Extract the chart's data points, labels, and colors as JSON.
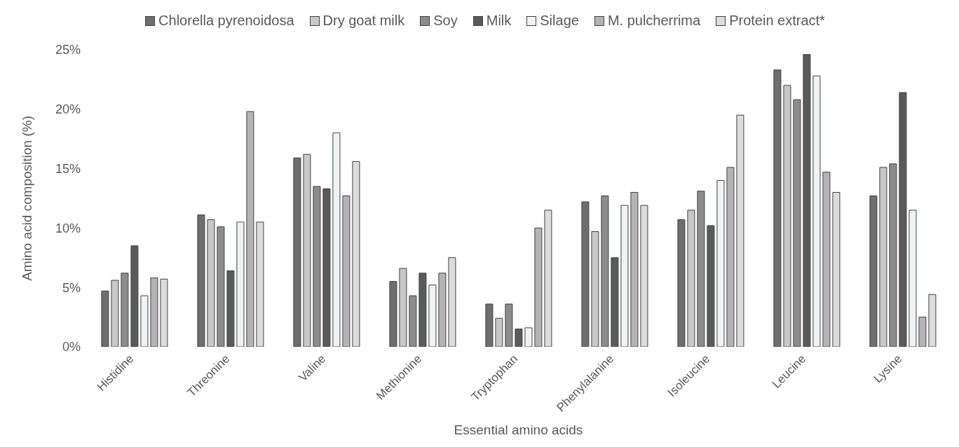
{
  "chart_data": {
    "type": "bar",
    "xlabel": "Essential amino acids",
    "ylabel": "Amino acid composition (%)",
    "categories": [
      "Histidine",
      "Threonine",
      "Valine",
      "Methionine",
      "Tryptophan",
      "Phenylalanine",
      "Isoleucine",
      "Leucine",
      "Lysine"
    ],
    "series": [
      {
        "name": "Chlorella pyrenoidosa",
        "color": "#6e6e6e",
        "values": [
          4.7,
          11.1,
          15.9,
          5.5,
          3.6,
          12.2,
          10.7,
          23.3,
          12.7
        ]
      },
      {
        "name": "Dry goat milk",
        "color": "#c8c8c8",
        "values": [
          5.6,
          10.7,
          16.2,
          6.6,
          2.4,
          9.7,
          11.5,
          22.0,
          15.1
        ]
      },
      {
        "name": "Soy",
        "color": "#8c8c8c",
        "values": [
          6.2,
          10.1,
          13.5,
          4.3,
          3.6,
          12.7,
          13.1,
          20.8,
          15.4
        ]
      },
      {
        "name": "Milk",
        "color": "#5a5a5a",
        "values": [
          8.5,
          6.4,
          13.3,
          6.2,
          1.5,
          7.5,
          10.2,
          24.6,
          21.4
        ]
      },
      {
        "name": "Silage",
        "color": "#eef4f6",
        "values": [
          4.3,
          10.5,
          18.0,
          5.2,
          1.6,
          11.9,
          14.0,
          22.8,
          11.5
        ]
      },
      {
        "name": "M. pulcherrima",
        "color": "#b4b4b4",
        "values": [
          5.8,
          19.8,
          12.7,
          6.2,
          10.0,
          13.0,
          15.1,
          14.7,
          2.5
        ]
      },
      {
        "name": "Protein extract*",
        "color": "#dcdcdc",
        "values": [
          5.7,
          10.5,
          15.6,
          7.5,
          11.5,
          11.9,
          19.5,
          13.0,
          4.4
        ]
      }
    ],
    "ylim": [
      0,
      25
    ],
    "yticks": [
      {
        "value": 0,
        "label": "0%"
      },
      {
        "value": 5,
        "label": "5%"
      },
      {
        "value": 10,
        "label": "10%"
      },
      {
        "value": 15,
        "label": "15%"
      },
      {
        "value": 20,
        "label": "20%"
      },
      {
        "value": 25,
        "label": "25%"
      }
    ],
    "grid": false,
    "legend": "top"
  }
}
